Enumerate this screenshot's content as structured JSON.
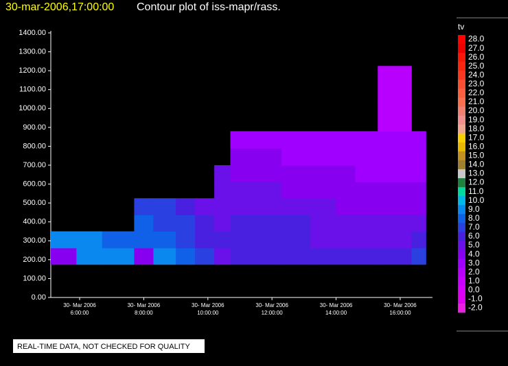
{
  "chart_data": {
    "type": "contour",
    "timestamp": "30-mar-2006,17:00:00",
    "title": "Contour plot of iss-mapr/rass.",
    "note": "REAL-TIME DATA, NOT CHECKED FOR QUALITY",
    "xlim": [
      5.1,
      17.5
    ],
    "ylim": [
      0,
      1400
    ],
    "xticks": [
      {
        "value": 6,
        "label": [
          "30- Mar 2006",
          "6:00:00"
        ]
      },
      {
        "value": 8,
        "label": [
          "30- Mar 2006",
          "8:00:00"
        ]
      },
      {
        "value": 10,
        "label": [
          "30- Mar 2006",
          "10:00:00"
        ]
      },
      {
        "value": 12,
        "label": [
          "30- Mar 2006",
          "12:00:00"
        ]
      },
      {
        "value": 14,
        "label": [
          "30- Mar 2006",
          "14:00:00"
        ]
      },
      {
        "value": 16,
        "label": [
          "30- Mar 2006",
          "16:00:00"
        ]
      }
    ],
    "yticks": [
      {
        "value": 0,
        "label": "0.00"
      },
      {
        "value": 100,
        "label": "100.00"
      },
      {
        "value": 200,
        "label": "200.00"
      },
      {
        "value": 300,
        "label": "300.00"
      },
      {
        "value": 400,
        "label": "400.00"
      },
      {
        "value": 500,
        "label": "500.00"
      },
      {
        "value": 600,
        "label": "600.00"
      },
      {
        "value": 700,
        "label": "700.00"
      },
      {
        "value": 800,
        "label": "800.00"
      },
      {
        "value": 900,
        "label": "900.00"
      },
      {
        "value": 1000,
        "label": "1000.00"
      },
      {
        "value": 1100,
        "label": "1100.00"
      },
      {
        "value": 1200,
        "label": "1200.00"
      },
      {
        "value": 1300,
        "label": "1300.00"
      },
      {
        "value": 1400,
        "label": "1400.00"
      }
    ],
    "x_edges": [
      5.1,
      5.9,
      6.7,
      7.7,
      8.3,
      9,
      9.6,
      10.2,
      10.7,
      11.5,
      12.3,
      13.2,
      14,
      14.6,
      15.3,
      15.8,
      16.35,
      16.8
    ],
    "y_edges": [
      175,
      262,
      350,
      437,
      525,
      612,
      700,
      790,
      880,
      1050,
      1225
    ],
    "z": [
      [
        4.5,
        9.5,
        9.5,
        4,
        9,
        8,
        7,
        5,
        6,
        6.5,
        6,
        6,
        6,
        6,
        6,
        6,
        7
      ],
      [
        9,
        9.5,
        8,
        8.5,
        8,
        7,
        6.5,
        6,
        6,
        6,
        6,
        5.5,
        5.5,
        5.5,
        5.5,
        5.5,
        6
      ],
      [
        null,
        null,
        null,
        8,
        7.5,
        7,
        6,
        5.5,
        6,
        6,
        6,
        5.5,
        5,
        5,
        5,
        5,
        5
      ],
      [
        null,
        null,
        null,
        7.5,
        7,
        6.5,
        5,
        5,
        5.5,
        5.5,
        5,
        5,
        4.5,
        4.5,
        4.5,
        4.5,
        4.5
      ],
      [
        null,
        null,
        null,
        null,
        null,
        null,
        null,
        5,
        5,
        5,
        4.5,
        4.5,
        4.5,
        4,
        4,
        4,
        4
      ],
      [
        null,
        null,
        null,
        null,
        null,
        null,
        null,
        5,
        4.5,
        4.5,
        4,
        4,
        4,
        3.5,
        3.5,
        3.5,
        3.5
      ],
      [
        null,
        null,
        null,
        null,
        null,
        null,
        null,
        null,
        4,
        4,
        3.5,
        3.5,
        3.5,
        3.5,
        3,
        3,
        3.5
      ],
      [
        null,
        null,
        null,
        null,
        null,
        null,
        null,
        null,
        3.5,
        3,
        3,
        3,
        3,
        3,
        3,
        3,
        3
      ],
      [
        null,
        null,
        null,
        null,
        null,
        null,
        null,
        null,
        null,
        null,
        null,
        null,
        null,
        null,
        2.5,
        2.5,
        null
      ],
      [
        null,
        null,
        null,
        null,
        null,
        null,
        null,
        null,
        null,
        null,
        null,
        null,
        null,
        null,
        2.5,
        2.5,
        null
      ]
    ],
    "colorbar_title": "tv",
    "levels": [
      {
        "value": 28,
        "label": "28.0"
      },
      {
        "value": 27,
        "label": "27.0"
      },
      {
        "value": 26,
        "label": "26.0"
      },
      {
        "value": 25,
        "label": "25.0"
      },
      {
        "value": 24,
        "label": "24.0"
      },
      {
        "value": 23,
        "label": "23.0"
      },
      {
        "value": 22,
        "label": "22.0"
      },
      {
        "value": 21,
        "label": "21.0"
      },
      {
        "value": 20,
        "label": "20.0"
      },
      {
        "value": 19,
        "label": "19.0"
      },
      {
        "value": 18,
        "label": "18.0"
      },
      {
        "value": 17,
        "label": "17.0"
      },
      {
        "value": 16,
        "label": "16.0"
      },
      {
        "value": 15,
        "label": "15.0"
      },
      {
        "value": 14,
        "label": "14.0"
      },
      {
        "value": 13,
        "label": "13.0"
      },
      {
        "value": 12,
        "label": "12.0"
      },
      {
        "value": 11,
        "label": "11.0"
      },
      {
        "value": 10,
        "label": "10.0"
      },
      {
        "value": 9,
        "label": "9.0"
      },
      {
        "value": 8,
        "label": "8.0"
      },
      {
        "value": 7,
        "label": "7.0"
      },
      {
        "value": 6,
        "label": "6.0"
      },
      {
        "value": 5,
        "label": "5.0"
      },
      {
        "value": 4,
        "label": "4.0"
      },
      {
        "value": 3,
        "label": "3.0"
      },
      {
        "value": 2,
        "label": "2.0"
      },
      {
        "value": 1,
        "label": "1.0"
      },
      {
        "value": 0,
        "label": "0.0"
      },
      {
        "value": -1,
        "label": "-1.0"
      },
      {
        "value": -2,
        "label": "-2.0"
      }
    ],
    "colors": [
      "#ff0000",
      "#f00000",
      "#f81808",
      "#f82810",
      "#f83820",
      "#f85030",
      "#f86040",
      "#f87050",
      "#f08070",
      "#f09090",
      "#f0a890",
      "#f8d000",
      "#e8b800",
      "#c09020",
      "#a08030",
      "#c8c8c8",
      "#208040",
      "#00d8a0",
      "#00b8e8",
      "#0a88f0",
      "#1060e8",
      "#2a40e0",
      "#4a20e0",
      "#6a10e8",
      "#8800f0",
      "#a000ff",
      "#b800ff",
      "#c800ff",
      "#d800f8",
      "#e000f0",
      "#e820e0"
    ]
  }
}
